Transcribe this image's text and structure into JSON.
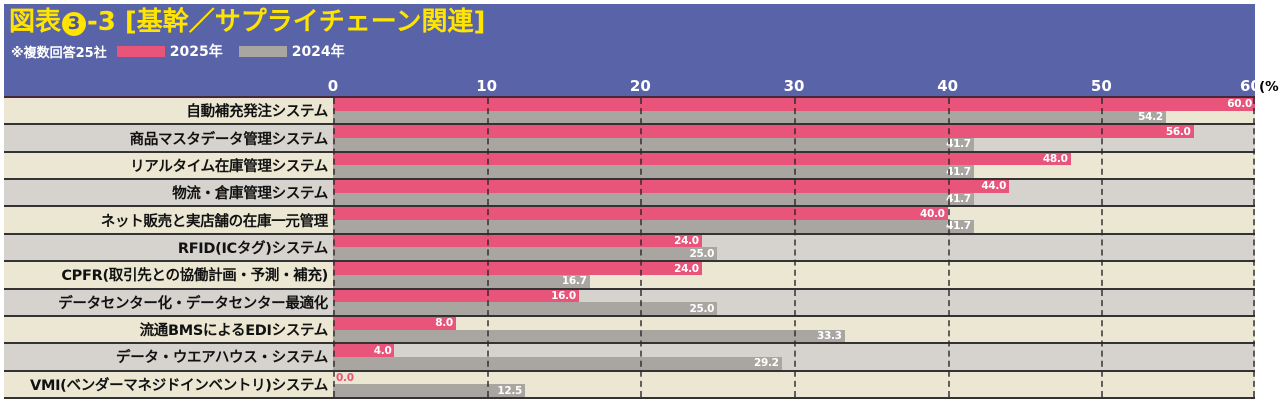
{
  "header": {
    "title_prefix": "図表",
    "title_number": "3",
    "title_dash": "-3",
    "title_bracket": "[基幹／サプライチェーン関連]",
    "note": "※複数回答25社",
    "legend": [
      {
        "label": "2025年",
        "color": "#e9547a"
      },
      {
        "label": "2024年",
        "color": "#a9a6a2"
      }
    ],
    "unit_label": "(%)"
  },
  "axis": {
    "min": 0,
    "max": 60,
    "ticks": [
      0,
      10,
      20,
      30,
      40,
      50,
      60
    ]
  },
  "chart_data": {
    "type": "bar",
    "orientation": "horizontal",
    "title": "図表❸-3 [基幹／サプライチェーン関連]",
    "note": "※複数回答25社",
    "xlabel": "(%)",
    "xlim": [
      0,
      60
    ],
    "grid": "vertical dashed lines every 10",
    "legend_position": "top-left",
    "categories": [
      "自動補充発注システム",
      "商品マスタデータ管理システム",
      "リアルタイム在庫管理システム",
      "物流・倉庫管理システム",
      "ネット販売と実店舗の在庫一元管理",
      "RFID(ICタグ)システム",
      "CPFR(取引先との協働計画・予測・補充)",
      "データセンター化・データセンター最適化",
      "流通BMSによるEDIシステム",
      "データ・ウエアハウス・システム",
      "VMI(ベンダーマネジドインベントリ)システム"
    ],
    "series": [
      {
        "name": "2025年",
        "color": "#e9547a",
        "values": [
          60.0,
          56.0,
          48.0,
          44.0,
          40.0,
          24.0,
          24.0,
          16.0,
          8.0,
          4.0,
          0.0
        ]
      },
      {
        "name": "2024年",
        "color": "#a9a6a2",
        "values": [
          54.2,
          41.7,
          41.7,
          41.7,
          41.7,
          25.0,
          16.7,
          25.0,
          33.3,
          29.2,
          12.5
        ]
      }
    ],
    "value_label_decimals": 1
  },
  "colors": {
    "canvas_bg": "#ffffff",
    "panel_blue": "#5963a7",
    "title_yellow": "#ffe400",
    "row_beige": "#ece7d3",
    "row_gray": "#d6d3cf",
    "row_border": "#333333",
    "gridline": "#2e282c",
    "value_text": "#ffffff",
    "zero_value_text": "#e9547a",
    "axis_text": "#ffffff",
    "unit_text": "#000000"
  }
}
